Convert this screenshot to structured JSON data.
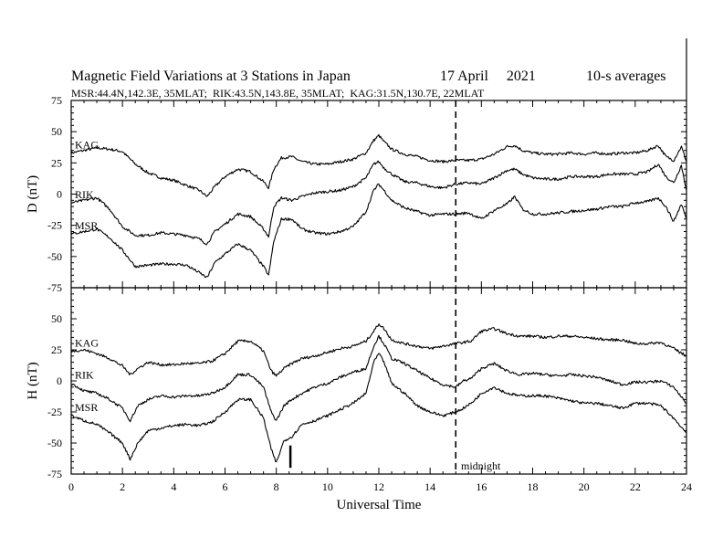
{
  "figure": {
    "title": "Magnetic Field Variations at 3 Stations in Japan",
    "date": "17 April     2021",
    "averaging": "10-s averages",
    "stations_info": "MSR:44.4N,142.3E, 35MLAT;  RIK:43.5N,143.8E, 35MLAT;  KAG:31.5N,130.7E, 22MLAT",
    "xlabel": "Universal Time",
    "midnight_label": "midnight"
  },
  "chart_data": [
    {
      "type": "line",
      "panel": "D",
      "ylabel": "D (nT)",
      "xlim": [
        0,
        24
      ],
      "ylim": [
        -75,
        75
      ],
      "xticks": [
        0,
        2,
        4,
        6,
        8,
        10,
        12,
        14,
        16,
        18,
        20,
        22,
        24
      ],
      "yticks": [
        -75,
        -50,
        -25,
        0,
        25,
        50,
        75
      ],
      "ytick_labels": [
        "-75",
        "-50",
        "-25",
        "0",
        "25",
        "50",
        "75"
      ],
      "vline_x": 15,
      "series": [
        {
          "name": "KAG",
          "x": [
            0,
            0.5,
            1,
            1.5,
            2,
            2.5,
            3,
            3.5,
            4,
            4.5,
            5,
            5.3,
            5.6,
            6,
            6.5,
            7,
            7.5,
            7.7,
            7.9,
            8.2,
            8.6,
            9,
            9.5,
            10,
            10.5,
            11,
            11.5,
            11.8,
            12,
            12.2,
            12.5,
            13,
            13.5,
            14,
            14.5,
            15,
            15.5,
            16,
            16.5,
            17,
            17.3,
            17.6,
            18,
            18.5,
            19,
            19.5,
            20,
            20.5,
            21,
            21.5,
            22,
            22.5,
            22.9,
            23.2,
            23.5,
            23.8,
            24
          ],
          "values": [
            33,
            35,
            37,
            36,
            34,
            24,
            17,
            13,
            11,
            7,
            3,
            -2,
            6,
            14,
            20,
            18,
            10,
            5,
            20,
            29,
            30,
            26,
            24,
            24,
            26,
            28,
            33,
            43,
            47,
            42,
            36,
            32,
            30,
            27,
            26,
            27,
            27,
            28,
            32,
            38,
            39,
            35,
            33,
            32,
            32,
            33,
            32,
            33,
            32,
            33,
            33,
            35,
            39,
            30,
            27,
            38,
            26
          ]
        },
        {
          "name": "RIK",
          "x": [
            0,
            0.5,
            1,
            1.5,
            2,
            2.5,
            3,
            3.5,
            4,
            4.5,
            5,
            5.3,
            5.6,
            6,
            6.5,
            7,
            7.5,
            7.7,
            7.9,
            8.2,
            8.6,
            9,
            9.5,
            10,
            10.5,
            11,
            11.5,
            11.8,
            12,
            12.2,
            12.5,
            13,
            13.5,
            14,
            14.5,
            15,
            15.5,
            16,
            16.5,
            17,
            17.3,
            17.6,
            18,
            18.5,
            19,
            19.5,
            20,
            20.5,
            21,
            21.5,
            22,
            22.5,
            22.9,
            23.2,
            23.5,
            23.8,
            24
          ],
          "values": [
            -7,
            -5,
            -3,
            -12,
            -26,
            -33,
            -33,
            -31,
            -32,
            -33,
            -36,
            -40,
            -30,
            -24,
            -16,
            -18,
            -28,
            -34,
            -10,
            -3,
            -5,
            -2,
            1,
            2,
            3,
            6,
            13,
            24,
            26,
            21,
            16,
            10,
            9,
            6,
            5,
            8,
            9,
            8,
            13,
            19,
            20,
            16,
            13,
            12,
            12,
            14,
            14,
            14,
            16,
            16,
            16,
            18,
            24,
            14,
            9,
            23,
            3
          ]
        },
        {
          "name": "MSR",
          "x": [
            0,
            0.5,
            1,
            1.5,
            2,
            2.5,
            3,
            3.5,
            4,
            4.5,
            5,
            5.3,
            5.6,
            6,
            6.5,
            7,
            7.5,
            7.7,
            7.9,
            8.2,
            8.6,
            9,
            9.5,
            10,
            10.5,
            11,
            11.5,
            11.8,
            12,
            12.2,
            12.5,
            13,
            13.5,
            14,
            14.5,
            15,
            15.5,
            16,
            16.5,
            17,
            17.3,
            17.6,
            18,
            18.5,
            19,
            19.5,
            20,
            20.5,
            21,
            21.5,
            22,
            22.5,
            22.9,
            23.2,
            23.5,
            23.8,
            24
          ],
          "values": [
            -32,
            -30,
            -28,
            -35,
            -45,
            -58,
            -57,
            -56,
            -56,
            -57,
            -63,
            -67,
            -55,
            -48,
            -40,
            -45,
            -58,
            -65,
            -38,
            -20,
            -20,
            -28,
            -31,
            -32,
            -30,
            -26,
            -14,
            3,
            8,
            3,
            -5,
            -11,
            -14,
            -17,
            -16,
            -16,
            -15,
            -20,
            -13,
            -8,
            -2,
            -12,
            -16,
            -16,
            -15,
            -14,
            -13,
            -12,
            -10,
            -10,
            -7,
            -6,
            -3,
            -10,
            -22,
            -8,
            -20
          ]
        }
      ]
    },
    {
      "type": "line",
      "panel": "H",
      "ylabel": "H (nT)",
      "xlim": [
        0,
        24
      ],
      "ylim": [
        -75,
        75
      ],
      "xticks": [
        0,
        2,
        4,
        6,
        8,
        10,
        12,
        14,
        16,
        18,
        20,
        22,
        24
      ],
      "yticks": [
        -75,
        -50,
        -25,
        0,
        25,
        50,
        75
      ],
      "ytick_labels": [
        "-75",
        "-50",
        "-25",
        "0",
        "25",
        "50",
        "75"
      ],
      "vline_x": 15,
      "series": [
        {
          "name": "KAG",
          "x": [
            0,
            0.5,
            1,
            1.5,
            2,
            2.3,
            2.6,
            3,
            3.5,
            4,
            4.5,
            5,
            5.5,
            6,
            6.5,
            7,
            7.5,
            7.8,
            8,
            8.3,
            8.6,
            9,
            9.5,
            10,
            10.5,
            11,
            11.5,
            11.8,
            12,
            12.2,
            12.5,
            13,
            13.5,
            14,
            14.5,
            15,
            15.3,
            15.6,
            16,
            16.5,
            17,
            17.5,
            18,
            18.5,
            19,
            19.5,
            20,
            20.5,
            21,
            21.5,
            22,
            22.5,
            23,
            23.5,
            24
          ],
          "values": [
            24,
            25,
            22,
            18,
            12,
            5,
            10,
            15,
            13,
            13,
            14,
            14,
            16,
            22,
            32,
            32,
            24,
            8,
            4,
            10,
            14,
            18,
            20,
            23,
            26,
            28,
            32,
            40,
            46,
            42,
            33,
            30,
            28,
            26,
            28,
            30,
            31,
            32,
            40,
            42,
            38,
            36,
            36,
            35,
            36,
            36,
            35,
            34,
            33,
            33,
            30,
            30,
            31,
            26,
            20
          ]
        },
        {
          "name": "RIK",
          "x": [
            0,
            0.5,
            1,
            1.5,
            2,
            2.3,
            2.6,
            3,
            3.5,
            4,
            4.5,
            5,
            5.5,
            6,
            6.5,
            7,
            7.5,
            7.8,
            8,
            8.3,
            8.6,
            9,
            9.5,
            10,
            10.5,
            11,
            11.5,
            11.8,
            12,
            12.2,
            12.5,
            13,
            13.5,
            14,
            14.5,
            15,
            15.3,
            15.6,
            16,
            16.5,
            17,
            17.5,
            18,
            18.5,
            19,
            19.5,
            20,
            20.5,
            21,
            21.5,
            22,
            22.5,
            23,
            23.5,
            24
          ],
          "values": [
            -2,
            -8,
            -10,
            -15,
            -22,
            -32,
            -20,
            -15,
            -12,
            -13,
            -12,
            -12,
            -10,
            -5,
            5,
            5,
            -5,
            -25,
            -32,
            -20,
            -15,
            -10,
            -5,
            -2,
            3,
            7,
            10,
            28,
            36,
            30,
            18,
            14,
            8,
            2,
            -3,
            -5,
            0,
            2,
            10,
            14,
            8,
            5,
            6,
            5,
            4,
            5,
            4,
            3,
            0,
            -3,
            -1,
            -1,
            0,
            -5,
            -18
          ]
        },
        {
          "name": "MSR",
          "x": [
            0,
            0.5,
            1,
            1.5,
            2,
            2.3,
            2.6,
            3,
            3.5,
            4,
            4.5,
            5,
            5.5,
            6,
            6.5,
            7,
            7.5,
            7.8,
            8,
            8.3,
            8.6,
            9,
            9.5,
            10,
            10.5,
            11,
            11.5,
            11.8,
            12,
            12.2,
            12.5,
            13,
            13.5,
            14,
            14.5,
            15,
            15.3,
            15.6,
            16,
            16.5,
            17,
            17.5,
            18,
            18.5,
            19,
            19.5,
            20,
            20.5,
            21,
            21.5,
            22,
            22.5,
            23,
            23.5,
            24
          ],
          "values": [
            -28,
            -32,
            -35,
            -42,
            -50,
            -63,
            -50,
            -40,
            -38,
            -36,
            -35,
            -36,
            -33,
            -25,
            -15,
            -15,
            -30,
            -55,
            -66,
            -48,
            -45,
            -35,
            -32,
            -28,
            -23,
            -18,
            -10,
            15,
            22,
            15,
            -2,
            -10,
            -20,
            -25,
            -28,
            -25,
            -22,
            -18,
            -10,
            -5,
            -10,
            -12,
            -12,
            -12,
            -14,
            -16,
            -18,
            -18,
            -20,
            -22,
            -18,
            -18,
            -20,
            -30,
            -42
          ]
        }
      ]
    }
  ]
}
